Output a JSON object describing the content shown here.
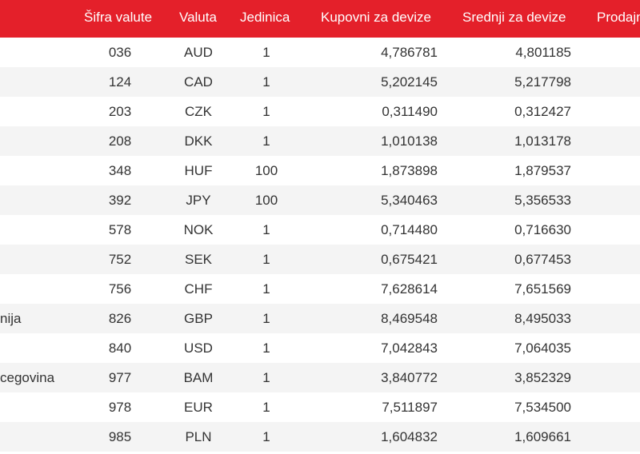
{
  "header": {
    "code": "Šifra valute",
    "currency": "Valuta",
    "unit": "Jedinica",
    "buy": "Kupovni za devize",
    "mid": "Srednji za devize",
    "sell": "Prodajn"
  },
  "rows": [
    {
      "country": "",
      "code": "036",
      "currency": "AUD",
      "unit": "1",
      "buy": "4,786781",
      "mid": "4,801185"
    },
    {
      "country": "",
      "code": "124",
      "currency": "CAD",
      "unit": "1",
      "buy": "5,202145",
      "mid": "5,217798"
    },
    {
      "country": "",
      "code": "203",
      "currency": "CZK",
      "unit": "1",
      "buy": "0,311490",
      "mid": "0,312427"
    },
    {
      "country": "",
      "code": "208",
      "currency": "DKK",
      "unit": "1",
      "buy": "1,010138",
      "mid": "1,013178"
    },
    {
      "country": "",
      "code": "348",
      "currency": "HUF",
      "unit": "100",
      "buy": "1,873898",
      "mid": "1,879537"
    },
    {
      "country": "",
      "code": "392",
      "currency": "JPY",
      "unit": "100",
      "buy": "5,340463",
      "mid": "5,356533"
    },
    {
      "country": "",
      "code": "578",
      "currency": "NOK",
      "unit": "1",
      "buy": "0,714480",
      "mid": "0,716630"
    },
    {
      "country": "",
      "code": "752",
      "currency": "SEK",
      "unit": "1",
      "buy": "0,675421",
      "mid": "0,677453"
    },
    {
      "country": "",
      "code": "756",
      "currency": "CHF",
      "unit": "1",
      "buy": "7,628614",
      "mid": "7,651569"
    },
    {
      "country": "nija",
      "code": "826",
      "currency": "GBP",
      "unit": "1",
      "buy": "8,469548",
      "mid": "8,495033"
    },
    {
      "country": "",
      "code": "840",
      "currency": "USD",
      "unit": "1",
      "buy": "7,042843",
      "mid": "7,064035"
    },
    {
      "country": "cegovina",
      "code": "977",
      "currency": "BAM",
      "unit": "1",
      "buy": "3,840772",
      "mid": "3,852329"
    },
    {
      "country": "",
      "code": "978",
      "currency": "EUR",
      "unit": "1",
      "buy": "7,511897",
      "mid": "7,534500"
    },
    {
      "country": "",
      "code": "985",
      "currency": "PLN",
      "unit": "1",
      "buy": "1,604832",
      "mid": "1,609661"
    }
  ],
  "colors": {
    "header_bg": "#e4202a",
    "header_text": "#ffffff",
    "row_alt_bg": "#f4f4f4",
    "text": "#333333"
  }
}
